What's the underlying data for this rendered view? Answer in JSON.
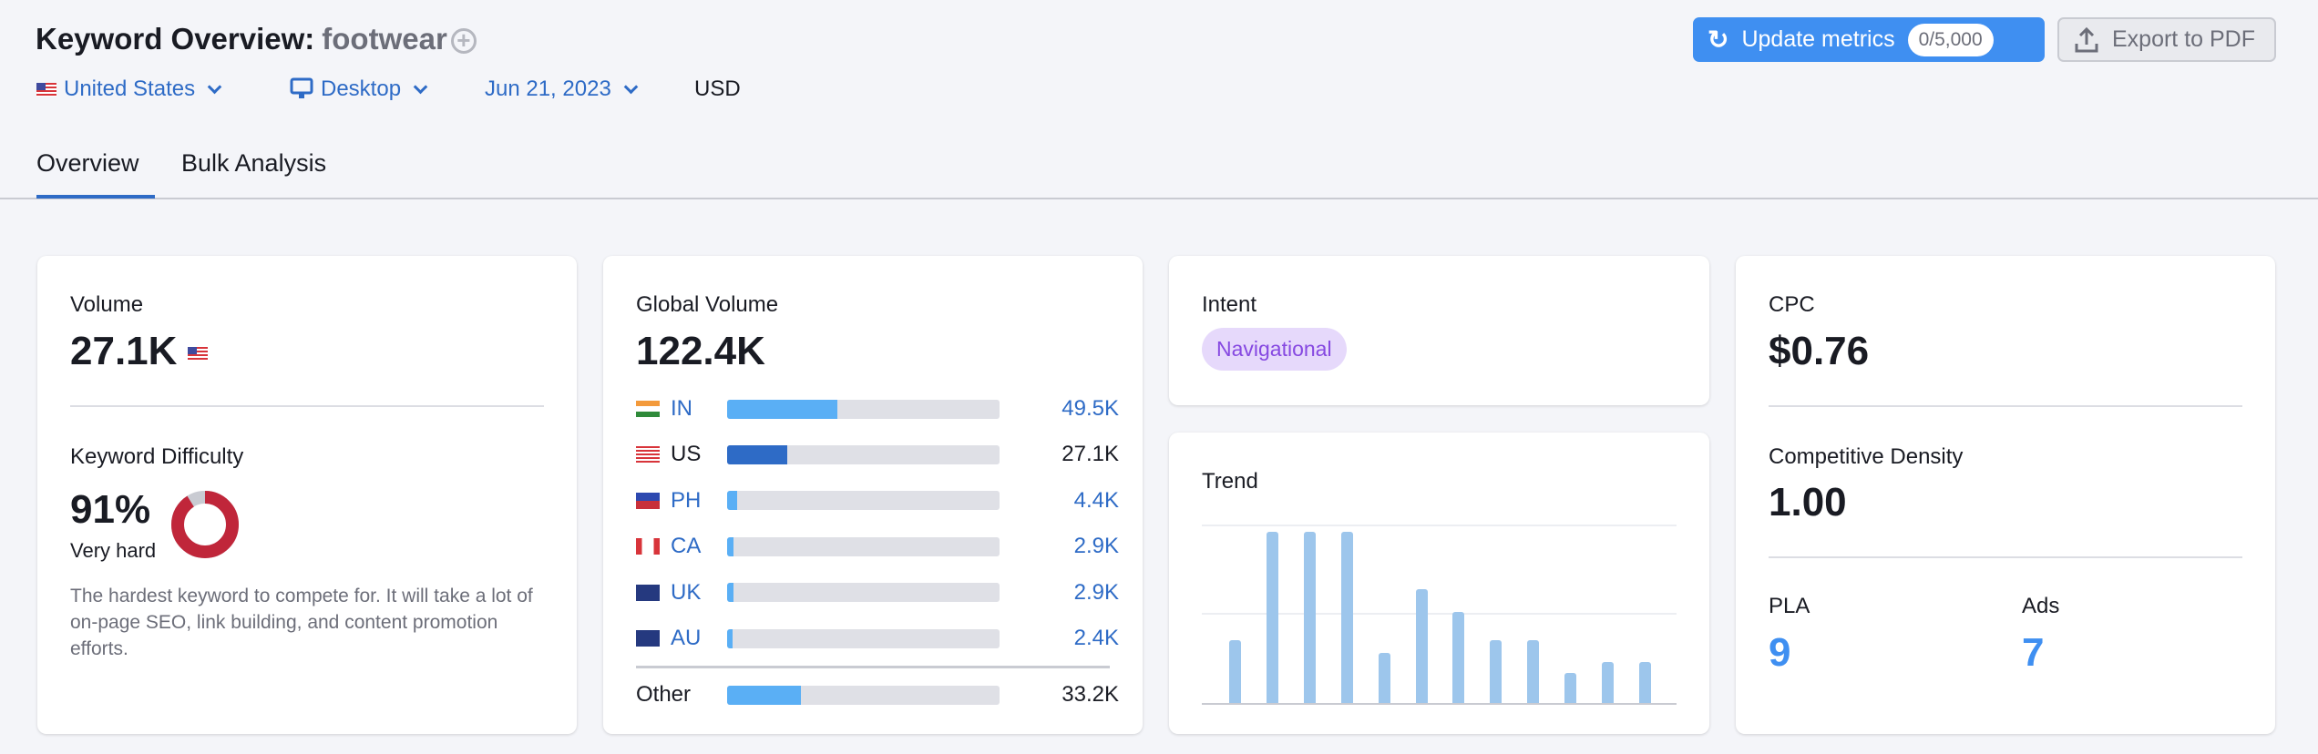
{
  "header": {
    "title": "Keyword Overview:",
    "keyword": "footwear",
    "add_icon": "plus-circle-icon"
  },
  "filters": {
    "country": "United States",
    "device": "Desktop",
    "date": "Jun 21, 2023",
    "currency": "USD"
  },
  "buttons": {
    "update_label": "Update metrics",
    "update_count": "0/5,000",
    "export_label": "Export to PDF"
  },
  "tabs": [
    {
      "label": "Overview",
      "active": true
    },
    {
      "label": "Bulk Analysis",
      "active": false
    }
  ],
  "volume": {
    "label": "Volume",
    "value": "27.1K"
  },
  "difficulty": {
    "label": "Keyword Difficulty",
    "value": "91%",
    "percent": 91,
    "level": "Very hard",
    "description": "The hardest keyword to compete for. It will take a lot of on-page SEO, link building, and content promotion efforts.",
    "color": "#c0263a"
  },
  "global": {
    "label": "Global Volume",
    "value": "122.4K",
    "total": 122.4,
    "countries": [
      {
        "code": "IN",
        "value": "49.5K",
        "num": 49.5,
        "link": true
      },
      {
        "code": "US",
        "value": "27.1K",
        "num": 27.1,
        "link": false
      },
      {
        "code": "PH",
        "value": "4.4K",
        "num": 4.4,
        "link": true
      },
      {
        "code": "CA",
        "value": "2.9K",
        "num": 2.9,
        "link": true
      },
      {
        "code": "UK",
        "value": "2.9K",
        "num": 2.9,
        "link": true
      },
      {
        "code": "AU",
        "value": "2.4K",
        "num": 2.4,
        "link": true
      }
    ],
    "other": {
      "label": "Other",
      "value": "33.2K",
      "num": 33.2
    }
  },
  "intent": {
    "label": "Intent",
    "value": "Navigational"
  },
  "chart_data": {
    "type": "bar",
    "title": "Trend",
    "values": [
      0.35,
      0.96,
      0.96,
      0.96,
      0.28,
      0.64,
      0.51,
      0.35,
      0.35,
      0.17,
      0.23,
      0.23
    ],
    "ylim": [
      0,
      1
    ]
  },
  "cpc": {
    "label": "CPC",
    "value": "$0.76"
  },
  "density": {
    "label": "Competitive Density",
    "value": "1.00"
  },
  "pla": {
    "label": "PLA",
    "value": "9"
  },
  "ads": {
    "label": "Ads",
    "value": "7"
  }
}
